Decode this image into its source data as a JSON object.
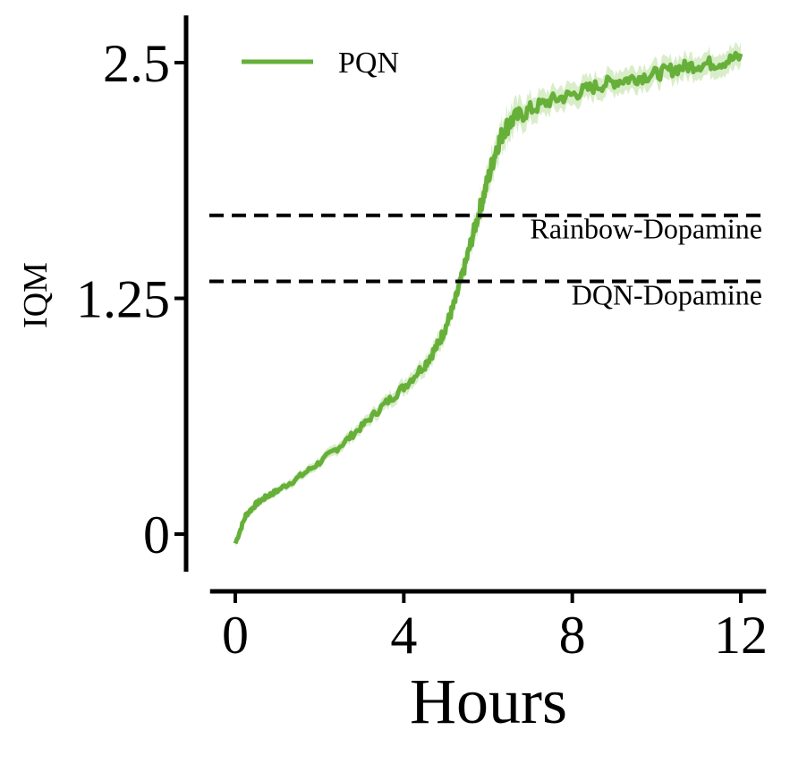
{
  "chart_data": {
    "type": "line",
    "xlabel": "Hours",
    "ylabel": "IQM",
    "xlim": [
      -0.6,
      12.6
    ],
    "ylim": [
      -0.2,
      2.75
    ],
    "x_ticks": [
      0,
      4,
      8,
      12
    ],
    "x_tick_labels": [
      "0",
      "4",
      "8",
      "12"
    ],
    "y_ticks": [
      0,
      1.25,
      2.5
    ],
    "y_tick_labels": [
      "0",
      "1.25",
      "2.5"
    ],
    "grid": false,
    "legend_position": "top-left",
    "series": [
      {
        "name": "PQN",
        "color": "#66b03a",
        "band_color": "#d9edc9",
        "x": [
          0,
          0.25,
          0.5,
          0.75,
          1.0,
          1.5,
          2.0,
          2.5,
          3.0,
          3.5,
          4.0,
          4.5,
          4.8,
          5.0,
          5.2,
          5.4,
          5.6,
          5.8,
          6.0,
          6.2,
          6.4,
          6.6,
          7.0,
          7.5,
          8.0,
          8.5,
          9.0,
          9.5,
          10.0,
          10.5,
          11.0,
          11.5,
          12.0
        ],
        "y": [
          -0.05,
          0.1,
          0.16,
          0.2,
          0.23,
          0.3,
          0.38,
          0.47,
          0.57,
          0.68,
          0.78,
          0.9,
          1.0,
          1.1,
          1.22,
          1.38,
          1.55,
          1.72,
          1.88,
          2.05,
          2.15,
          2.2,
          2.25,
          2.3,
          2.33,
          2.37,
          2.4,
          2.42,
          2.44,
          2.47,
          2.49,
          2.5,
          2.53
        ],
        "band_halfwidth": [
          0.02,
          0.02,
          0.02,
          0.02,
          0.02,
          0.025,
          0.025,
          0.03,
          0.03,
          0.035,
          0.04,
          0.045,
          0.05,
          0.05,
          0.05,
          0.055,
          0.06,
          0.07,
          0.08,
          0.08,
          0.08,
          0.08,
          0.07,
          0.06,
          0.06,
          0.06,
          0.06,
          0.06,
          0.06,
          0.06,
          0.06,
          0.06,
          0.06
        ]
      }
    ],
    "reference_lines": [
      {
        "label": "Rainbow-Dopamine",
        "y": 1.69,
        "style": "dashed",
        "color": "#000000"
      },
      {
        "label": "DQN-Dopamine",
        "y": 1.34,
        "style": "dashed",
        "color": "#000000"
      }
    ]
  }
}
